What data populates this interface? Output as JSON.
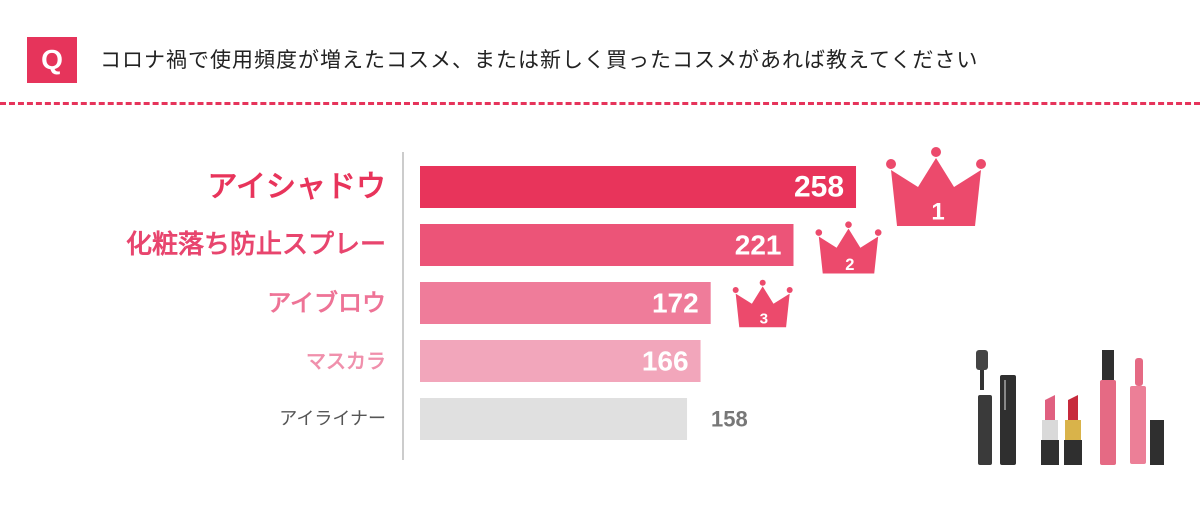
{
  "header": {
    "badge": "Q",
    "question": "コロナ禍で使用頻度が増えたコスメ、または新しく買ったコスメがあれば教えてください"
  },
  "chart_data": {
    "type": "bar",
    "orientation": "horizontal",
    "categories": [
      "アイシャドウ",
      "化粧落ち防止スプレー",
      "アイブロウ",
      "マスカラ",
      "アイライナー"
    ],
    "values": [
      258,
      221,
      172,
      166,
      158
    ],
    "bar_colors": [
      "#e8345b",
      "#ec5478",
      "#ef7c9a",
      "#f2a6bb",
      "#e0e0e0"
    ],
    "label_colors": [
      "#e8345b",
      "#e8456e",
      "#ee7396",
      "#f090ac",
      "#555555"
    ],
    "value_label_colors": [
      "#ffffff",
      "#ffffff",
      "#ffffff",
      "#ffffff",
      "#777777"
    ],
    "ranks": [
      "1",
      "2",
      "3"
    ],
    "crown_color": "#ec4a6c"
  }
}
